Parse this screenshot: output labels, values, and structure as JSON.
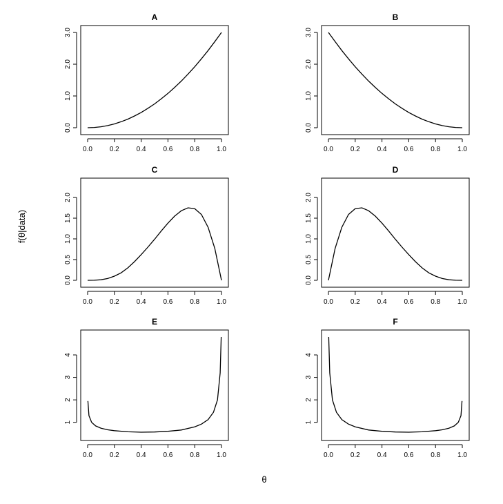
{
  "figure": {
    "ylabel": "f(θ|data)",
    "xlabel": "θ"
  },
  "chart_data": [
    {
      "type": "line",
      "title": "A",
      "x": [
        0,
        0.05,
        0.1,
        0.15,
        0.2,
        0.25,
        0.3,
        0.35,
        0.4,
        0.45,
        0.5,
        0.55,
        0.6,
        0.65,
        0.7,
        0.75,
        0.8,
        0.85,
        0.9,
        0.95,
        1.0
      ],
      "y": [
        0,
        0.008,
        0.03,
        0.068,
        0.12,
        0.19,
        0.27,
        0.37,
        0.48,
        0.61,
        0.75,
        0.91,
        1.08,
        1.27,
        1.47,
        1.69,
        1.92,
        2.17,
        2.43,
        2.71,
        3.0
      ],
      "xticks": [
        "0.0",
        "0.2",
        "0.4",
        "0.6",
        "0.8",
        "1.0"
      ],
      "xtick_values": [
        0,
        0.2,
        0.4,
        0.6,
        0.8,
        1.0
      ],
      "yticks": [
        "0.0",
        "1.0",
        "2.0",
        "3.0"
      ],
      "ytick_values": [
        0,
        1,
        2,
        3
      ],
      "xlim": [
        0,
        1
      ],
      "ylim": [
        0,
        3
      ]
    },
    {
      "type": "line",
      "title": "B",
      "x": [
        0,
        0.05,
        0.1,
        0.15,
        0.2,
        0.25,
        0.3,
        0.35,
        0.4,
        0.45,
        0.5,
        0.55,
        0.6,
        0.65,
        0.7,
        0.75,
        0.8,
        0.85,
        0.9,
        0.95,
        1.0
      ],
      "y": [
        3.0,
        2.71,
        2.43,
        2.17,
        1.92,
        1.69,
        1.47,
        1.27,
        1.08,
        0.91,
        0.75,
        0.61,
        0.48,
        0.37,
        0.27,
        0.19,
        0.12,
        0.068,
        0.03,
        0.008,
        0
      ],
      "xticks": [
        "0.0",
        "0.2",
        "0.4",
        "0.6",
        "0.8",
        "1.0"
      ],
      "xtick_values": [
        0,
        0.2,
        0.4,
        0.6,
        0.8,
        1.0
      ],
      "yticks": [
        "0.0",
        "1.0",
        "2.0",
        "3.0"
      ],
      "ytick_values": [
        0,
        1,
        2,
        3
      ],
      "xlim": [
        0,
        1
      ],
      "ylim": [
        0,
        3
      ]
    },
    {
      "type": "line",
      "title": "C",
      "x": [
        0,
        0.05,
        0.1,
        0.15,
        0.2,
        0.25,
        0.3,
        0.35,
        0.4,
        0.45,
        0.5,
        0.55,
        0.6,
        0.65,
        0.7,
        0.75,
        0.8,
        0.85,
        0.9,
        0.95,
        1.0
      ],
      "y": [
        0,
        0.002,
        0.014,
        0.044,
        0.1,
        0.18,
        0.3,
        0.45,
        0.62,
        0.8,
        0.99,
        1.19,
        1.38,
        1.55,
        1.68,
        1.75,
        1.73,
        1.59,
        1.28,
        0.77,
        0
      ],
      "xticks": [
        "0.0",
        "0.2",
        "0.4",
        "0.6",
        "0.8",
        "1.0"
      ],
      "xtick_values": [
        0,
        0.2,
        0.4,
        0.6,
        0.8,
        1.0
      ],
      "yticks": [
        "0.0",
        "0.5",
        "1.0",
        "1.5",
        "2.0"
      ],
      "ytick_values": [
        0,
        0.5,
        1,
        1.5,
        2
      ],
      "xlim": [
        0,
        1
      ],
      "ylim": [
        0,
        2.3
      ]
    },
    {
      "type": "line",
      "title": "D",
      "x": [
        0,
        0.05,
        0.1,
        0.15,
        0.2,
        0.25,
        0.3,
        0.35,
        0.4,
        0.45,
        0.5,
        0.55,
        0.6,
        0.65,
        0.7,
        0.75,
        0.8,
        0.85,
        0.9,
        0.95,
        1.0
      ],
      "y": [
        0,
        0.77,
        1.28,
        1.59,
        1.73,
        1.75,
        1.68,
        1.55,
        1.38,
        1.19,
        0.99,
        0.8,
        0.62,
        0.45,
        0.3,
        0.18,
        0.1,
        0.044,
        0.014,
        0.002,
        0
      ],
      "xticks": [
        "0.0",
        "0.2",
        "0.4",
        "0.6",
        "0.8",
        "1.0"
      ],
      "xtick_values": [
        0,
        0.2,
        0.4,
        0.6,
        0.8,
        1.0
      ],
      "yticks": [
        "0.0",
        "0.5",
        "1.0",
        "1.5",
        "2.0"
      ],
      "ytick_values": [
        0,
        0.5,
        1,
        1.5,
        2
      ],
      "xlim": [
        0,
        1
      ],
      "ylim": [
        0,
        2.3
      ]
    },
    {
      "type": "line",
      "title": "E",
      "x": [
        0.002,
        0.01,
        0.03,
        0.06,
        0.1,
        0.15,
        0.2,
        0.3,
        0.4,
        0.5,
        0.6,
        0.7,
        0.8,
        0.85,
        0.9,
        0.94,
        0.97,
        0.99,
        0.998
      ],
      "y": [
        1.95,
        1.3,
        1.0,
        0.84,
        0.74,
        0.67,
        0.63,
        0.58,
        0.56,
        0.57,
        0.6,
        0.66,
        0.8,
        0.92,
        1.12,
        1.45,
        2.0,
        3.2,
        4.8
      ],
      "xticks": [
        "0.0",
        "0.2",
        "0.4",
        "0.6",
        "0.8",
        "1.0"
      ],
      "xtick_values": [
        0,
        0.2,
        0.4,
        0.6,
        0.8,
        1.0
      ],
      "yticks": [
        "1",
        "2",
        "3",
        "4"
      ],
      "ytick_values": [
        1,
        2,
        3,
        4
      ],
      "xlim": [
        0,
        1
      ],
      "ylim": [
        0.5,
        4.8
      ]
    },
    {
      "type": "line",
      "title": "F",
      "x": [
        0.002,
        0.01,
        0.03,
        0.06,
        0.1,
        0.15,
        0.2,
        0.3,
        0.4,
        0.5,
        0.6,
        0.7,
        0.8,
        0.85,
        0.9,
        0.94,
        0.97,
        0.99,
        0.998
      ],
      "y": [
        4.8,
        3.2,
        2.0,
        1.45,
        1.12,
        0.92,
        0.8,
        0.66,
        0.6,
        0.57,
        0.56,
        0.58,
        0.63,
        0.67,
        0.74,
        0.84,
        1.0,
        1.3,
        1.95
      ],
      "xticks": [
        "0.0",
        "0.2",
        "0.4",
        "0.6",
        "0.8",
        "1.0"
      ],
      "xtick_values": [
        0,
        0.2,
        0.4,
        0.6,
        0.8,
        1.0
      ],
      "yticks": [
        "1",
        "2",
        "3",
        "4"
      ],
      "ytick_values": [
        1,
        2,
        3,
        4
      ],
      "xlim": [
        0,
        1
      ],
      "ylim": [
        0.5,
        4.8
      ]
    }
  ]
}
